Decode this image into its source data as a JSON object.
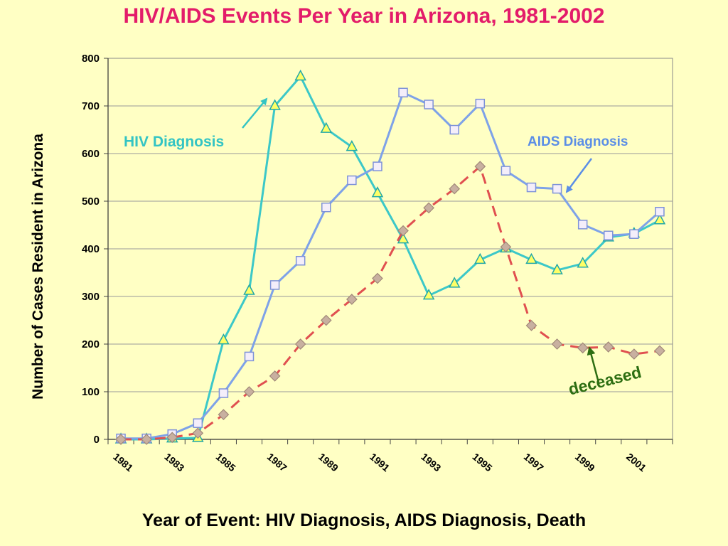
{
  "chart_data": {
    "type": "line",
    "title": "HIV/AIDS Events Per Year in Arizona, 1981-2002",
    "xlabel": "Year  of  Event: HIV Diagnosis, AIDS Diagnosis, Death",
    "ylabel": "Number of Cases Resident in Arizona",
    "ylim": [
      0,
      800
    ],
    "yticks": [
      0,
      100,
      200,
      300,
      400,
      500,
      600,
      700,
      800
    ],
    "xtick_labels": [
      "1981",
      "1983",
      "1985",
      "1987",
      "1989",
      "1991",
      "1993",
      "1995",
      "1997",
      "1999",
      "2001"
    ],
    "x": [
      1981,
      1982,
      1983,
      1984,
      1985,
      1986,
      1987,
      1988,
      1989,
      1990,
      1991,
      1992,
      1993,
      1994,
      1995,
      1996,
      1997,
      1998,
      1999,
      2000,
      2001,
      2002
    ],
    "grid": "horizontal",
    "series": [
      {
        "name": "HIV Diagnosis",
        "color": "#3cc8c8",
        "marker": "triangle",
        "values": [
          0,
          0,
          2,
          3,
          208,
          312,
          700,
          762,
          652,
          614,
          517,
          420,
          302,
          327,
          377,
          401,
          377,
          355,
          369,
          424,
          432,
          460
        ]
      },
      {
        "name": "AIDS Diagnosis",
        "color": "#7ea2e8",
        "marker": "square",
        "values": [
          2,
          2,
          11,
          34,
          97,
          174,
          324,
          375,
          487,
          544,
          573,
          728,
          703,
          650,
          705,
          564,
          529,
          526,
          451,
          428,
          431,
          478
        ]
      },
      {
        "name": "deceased",
        "color": "#e05050",
        "marker": "diamond",
        "dashed": true,
        "values": [
          0,
          0,
          4,
          13,
          52,
          100,
          133,
          200,
          250,
          294,
          338,
          438,
          486,
          526,
          573,
          404,
          239,
          200,
          192,
          194,
          179,
          186
        ]
      }
    ]
  }
}
